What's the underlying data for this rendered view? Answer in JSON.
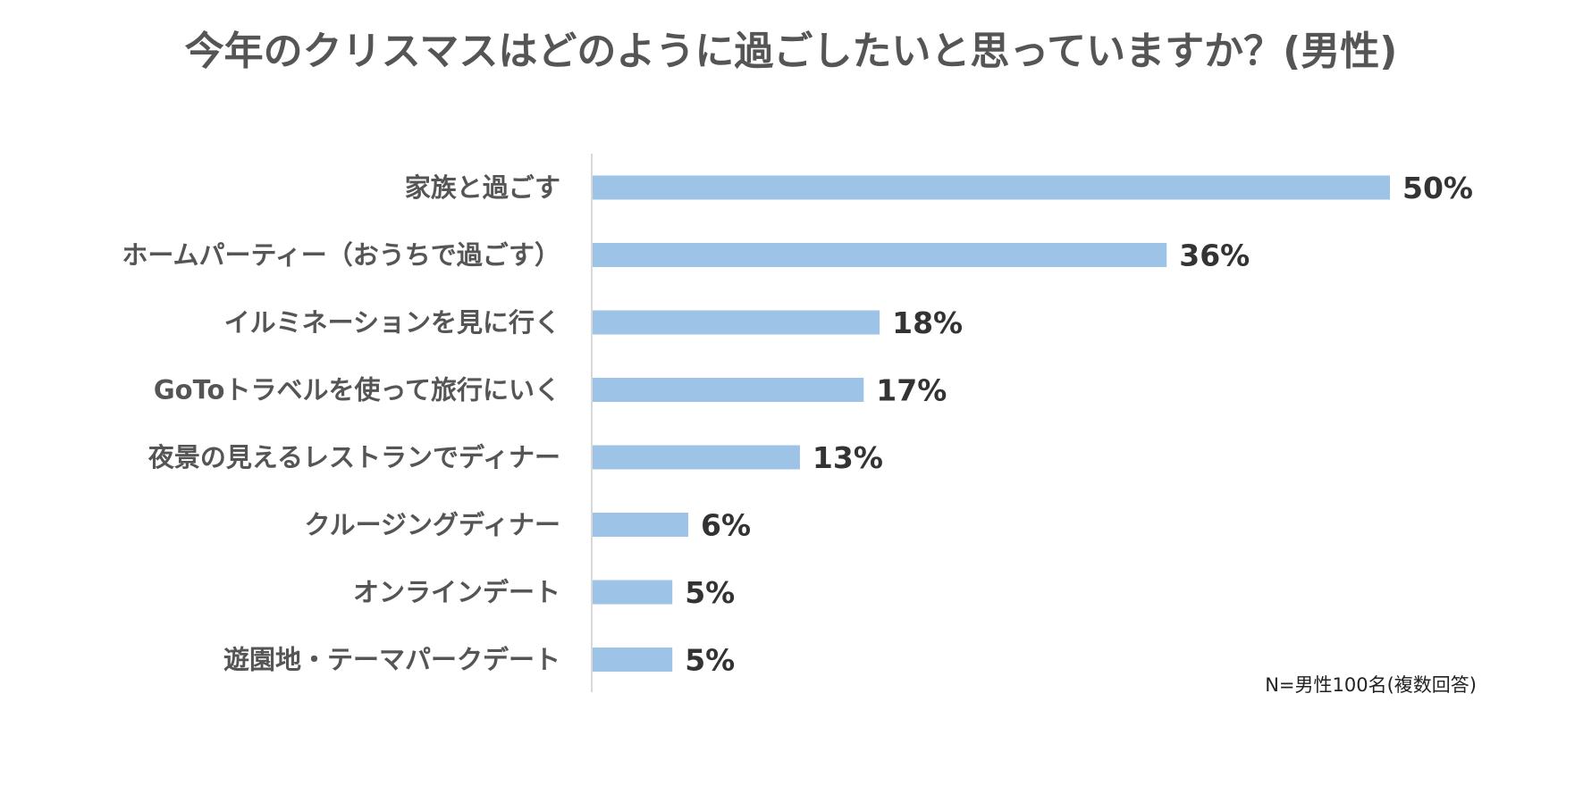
{
  "chart_data": {
    "type": "bar",
    "orientation": "horizontal",
    "title": "今年のクリスマスはどのように過ごしたいと思っていますか？(男性)",
    "categories": [
      "家族と過ごす",
      "ホームパーティー（おうちで過ごす）",
      "イルミネーションを見に行く",
      "GoToトラベルを使って旅行にいく",
      "夜景の見えるレストランでディナー",
      "クルージングディナー",
      "オンラインデート",
      "遊園地・テーマパークデート"
    ],
    "values": [
      50,
      36,
      18,
      17,
      13,
      6,
      5,
      5
    ],
    "value_labels": [
      "50%",
      "36%",
      "18%",
      "17%",
      "13%",
      "6%",
      "5%",
      "5%"
    ],
    "unit": "%",
    "xlim": [
      0,
      50
    ],
    "grid": false,
    "legend": "none",
    "bar_color": "#9dc3e6",
    "axis_color": "#d9d9d9",
    "note": "N=男性100名(複数回答)"
  }
}
